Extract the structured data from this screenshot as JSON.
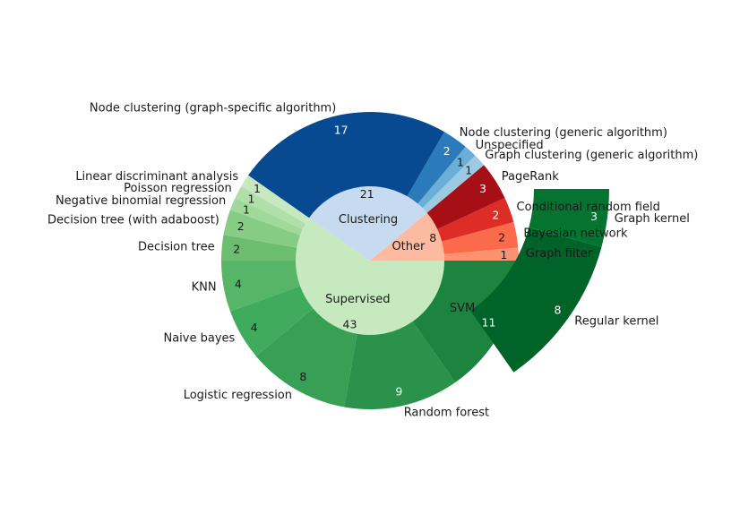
{
  "chart_data": {
    "type": "pie",
    "subtype": "nested-donut",
    "title": "",
    "start_angle_deg": 0,
    "direction": "counterclockwise",
    "inner_ring": [
      {
        "name": "Clustering",
        "value": 21,
        "color": "#c6dbef"
      },
      {
        "name": "Other",
        "value": 8,
        "color": "#fcbba1"
      },
      {
        "name": "Supervised",
        "value": 43,
        "color": "#c7e9c0"
      }
    ],
    "outer_ring": [
      {
        "name": "Graph filter",
        "value": 1,
        "group": "Other",
        "color": "#fc9272",
        "text_color": "#1a1a1a"
      },
      {
        "name": "Bayesian network",
        "value": 2,
        "group": "Other",
        "color": "#fb6a4a",
        "text_color": "#1a1a1a"
      },
      {
        "name": "Conditional random field",
        "value": 2,
        "group": "Other",
        "color": "#de2d26",
        "text_color": "#ffffff"
      },
      {
        "name": "PageRank",
        "value": 3,
        "group": "Other",
        "color": "#a50f15",
        "text_color": "#ffffff"
      },
      {
        "name": "Graph clustering (generic algorithm)",
        "value": 1,
        "group": "Clustering",
        "color": "#9ecae1",
        "text_color": "#1a1a1a"
      },
      {
        "name": "Unspecified",
        "value": 1,
        "group": "Clustering",
        "color": "#6baed6",
        "text_color": "#1a1a1a"
      },
      {
        "name": "Node clustering (generic algorithm)",
        "value": 2,
        "group": "Clustering",
        "color": "#2b7bba",
        "text_color": "#ffffff"
      },
      {
        "name": "Node clustering (graph-specific algorithm)",
        "value": 17,
        "group": "Clustering",
        "color": "#084a91",
        "text_color": "#ffffff"
      },
      {
        "name": "Linear discriminant analysis",
        "value": 1,
        "group": "Supervised",
        "color": "#c7e9c0",
        "text_color": "#1a1a1a"
      },
      {
        "name": "Poisson regression",
        "value": 1,
        "group": "Supervised",
        "color": "#b2dfa9",
        "text_color": "#1a1a1a"
      },
      {
        "name": "Negative binomial regression",
        "value": 1,
        "group": "Supervised",
        "color": "#a1d99b",
        "text_color": "#1a1a1a"
      },
      {
        "name": "Decision tree (with adaboost)",
        "value": 2,
        "group": "Supervised",
        "color": "#86cc84",
        "text_color": "#1a1a1a"
      },
      {
        "name": "Decision tree",
        "value": 2,
        "group": "Supervised",
        "color": "#6cbe6e",
        "text_color": "#1a1a1a"
      },
      {
        "name": "KNN",
        "value": 4,
        "group": "Supervised",
        "color": "#56b567",
        "text_color": "#1a1a1a"
      },
      {
        "name": "Naive bayes",
        "value": 4,
        "group": "Supervised",
        "color": "#41ab5d",
        "text_color": "#1a1a1a"
      },
      {
        "name": "Logistic regression",
        "value": 8,
        "group": "Supervised",
        "color": "#37a055",
        "text_color": "#1a1a1a"
      },
      {
        "name": "Random forest",
        "value": 9,
        "group": "Supervised",
        "color": "#2a924a",
        "text_color": "#ffffff"
      },
      {
        "name": "SVM",
        "value": 11,
        "group": "Supervised",
        "color": "#1d843f",
        "text_color": "#ffffff",
        "label_inside": true
      }
    ],
    "exploded_ring": {
      "parent": "SVM",
      "slices": [
        {
          "name": "Regular kernel",
          "value": 8,
          "color": "#006428",
          "text_color": "#ffffff"
        },
        {
          "name": "Graph kernel",
          "value": 3,
          "color": "#067431",
          "text_color": "#ffffff"
        }
      ]
    },
    "legend": "none"
  }
}
